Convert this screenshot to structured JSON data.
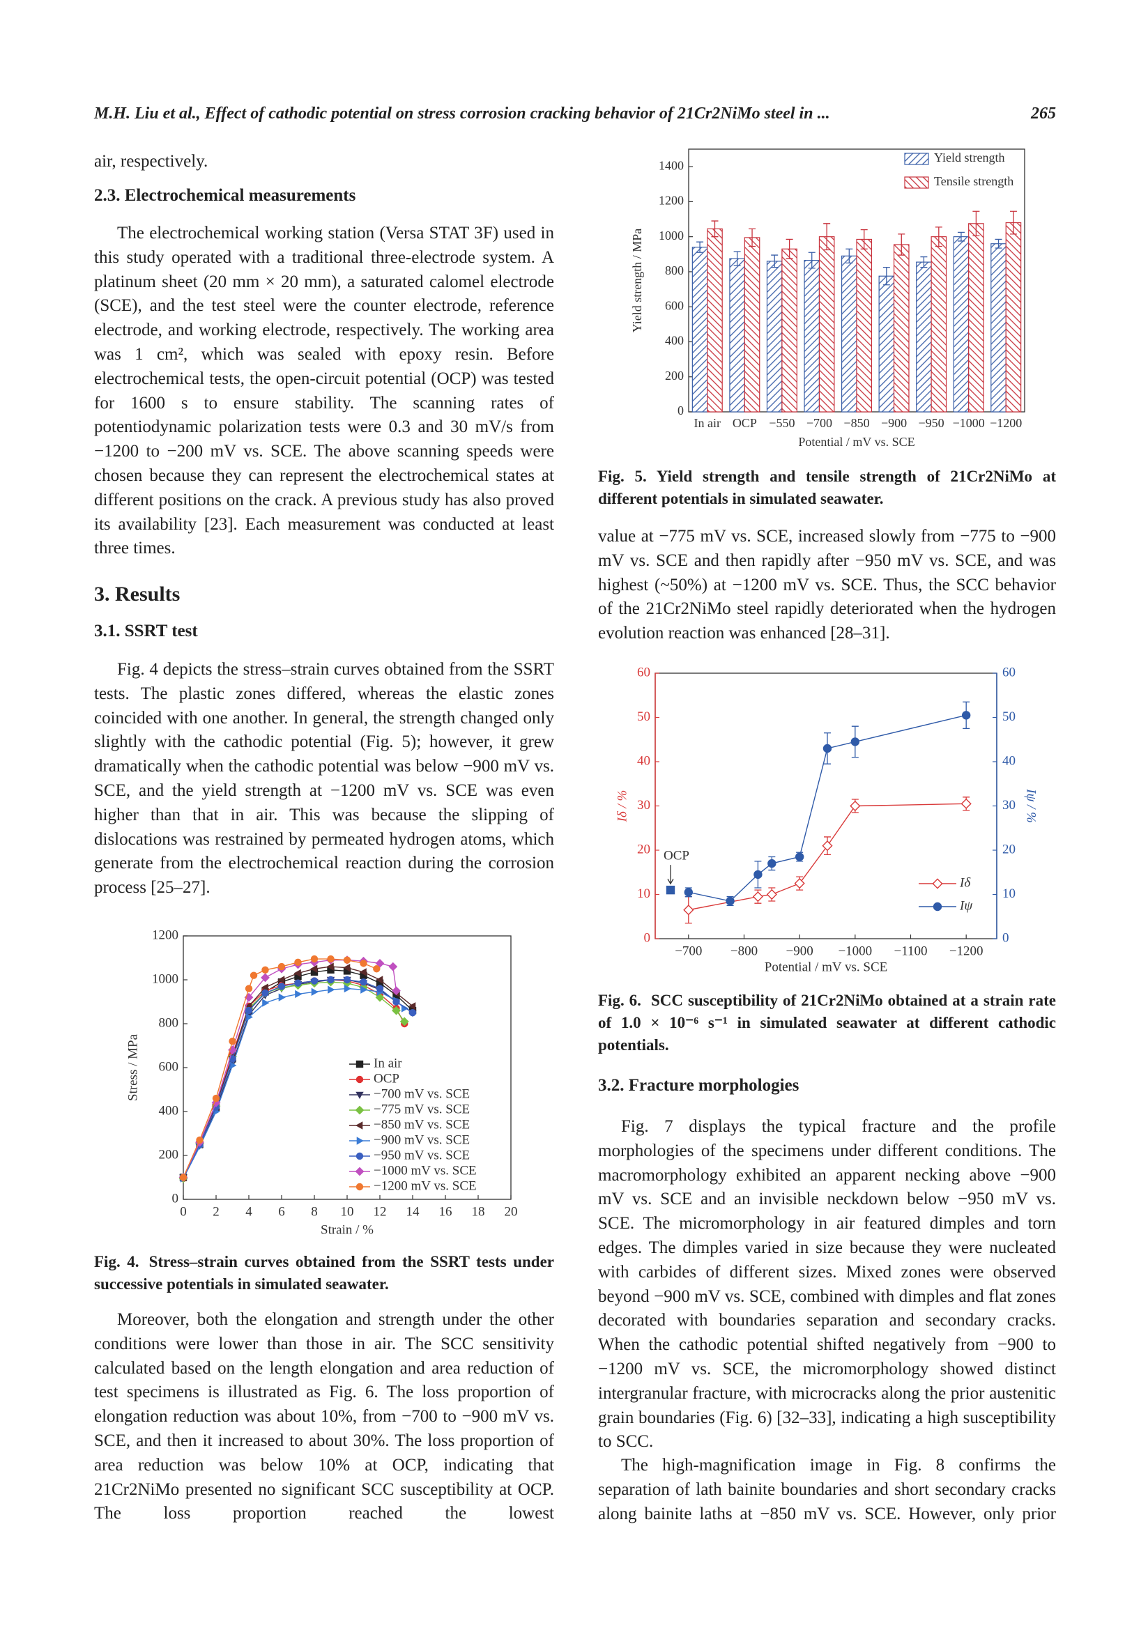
{
  "header": {
    "title": "M.H. Liu et al., Effect of cathodic potential on stress corrosion cracking behavior of 21Cr2NiMo steel in ...",
    "page": "265"
  },
  "text": {
    "p0": "air, respectively.",
    "h23": "2.3. Electrochemical measurements",
    "p1": "The electrochemical working station (Versa STAT 3F) used in this study operated with a traditional three-electrode system. A platinum sheet (20 mm × 20 mm), a saturated calomel electrode (SCE), and the test steel were the counter electrode, reference electrode, and working electrode, respectively. The working area was 1 cm², which was sealed with epoxy resin. Before electrochemical tests, the open-circuit potential (OCP) was tested for 1600 s to ensure stability. The scanning rates of potentiodynamic polarization tests were 0.3 and 30 mV/s from −1200 to −200 mV vs. SCE. The above scanning speeds were chosen because they can represent the electrochemical states at different positions on the crack. A previous study has also proved its availability [23]. Each measurement was conducted at least three times.",
    "h3": "3. Results",
    "h31": "3.1. SSRT test",
    "p2": "Fig. 4 depicts the stress–strain curves obtained from the SSRT tests. The plastic zones differed, whereas the elastic zones coincided with one another. In general, the strength changed only slightly with the cathodic potential (Fig. 5); however, it grew dramatically when the cathodic potential was below −900 mV vs. SCE, and the yield strength at −1200 mV vs. SCE was even higher than that in air. This was because the slipping of dislocations was restrained by permeated hydrogen atoms, which generate from the electrochemical reaction during the corrosion process [25–27].",
    "p3": "Moreover, both the elongation and strength under the other conditions were lower than those in air. The SCC sensitivity calculated based on the length elongation and area reduction of test specimens is illustrated as Fig. 6. The loss proportion of elongation reduction was about 10%, from −700 to −900 mV vs. SCE, and then it increased to about 30%. The loss proportion of area reduction was below 10% at OCP, indicating that 21Cr2NiMo presented no significant SCC susceptibility at OCP. The loss proportion reached the lowest",
    "p4": "value at −775 mV vs. SCE, increased slowly from −775 to −900 mV vs. SCE and then rapidly after −950 mV vs. SCE, and was highest (~50%) at −1200 mV vs. SCE. Thus, the SCC behavior of the 21Cr2NiMo steel rapidly deteriorated when the hydrogen evolution reaction was enhanced [28–31].",
    "h32": "3.2. Fracture morphologies",
    "p5": "Fig. 7 displays the typical fracture and the profile morphologies of the specimens under different conditions. The macromorphology exhibited an apparent necking above −900 mV vs. SCE and an invisible neckdown below −950 mV vs. SCE. The micromorphology in air featured dimples and torn edges. The dimples varied in size because they were nucleated with carbides of different sizes. Mixed zones were observed beyond −900 mV vs. SCE, combined with dimples and flat zones decorated with boundaries separation and secondary cracks. When the cathodic potential shifted negatively from −900 to −1200 mV vs. SCE, the micromorphology showed distinct intergranular fracture, with microcracks along the prior austenitic grain boundaries (Fig. 6) [32–33], indicating a high susceptibility to SCC.",
    "p6": "The high-magnification image in Fig. 8 confirms the separation of lath bainite boundaries and short secondary cracks along bainite laths at −850 mV vs. SCE. However, only prior"
  },
  "captions": {
    "fig4": {
      "label": "Fig. 4.",
      "text": "Stress–strain curves obtained from the SSRT tests under successive potentials in simulated seawater."
    },
    "fig5": {
      "label": "Fig. 5.",
      "text": "Yield strength and tensile strength of 21Cr2NiMo at different potentials in simulated seawater."
    },
    "fig6": {
      "label": "Fig. 6.",
      "text": "SCC susceptibility of 21Cr2NiMo obtained at a strain rate of 1.0 × 10⁻⁶ s⁻¹ in simulated seawater at different cathodic potentials."
    }
  },
  "chart_data": [
    {
      "type": "line",
      "xlabel": "Strain / %",
      "ylabel": "Stress / MPa",
      "xlim": [
        0,
        20
      ],
      "xticks": [
        0,
        2,
        4,
        6,
        8,
        10,
        12,
        14,
        16,
        18,
        20
      ],
      "ylim": [
        0,
        1200
      ],
      "yticks": [
        0,
        200,
        400,
        600,
        800,
        1000,
        1200
      ],
      "legend": "lower right",
      "series": [
        {
          "name": "In air",
          "color": "#222222",
          "marker": "square",
          "x": [
            0,
            1,
            2,
            3,
            4,
            5,
            6,
            7,
            8,
            9,
            10,
            11,
            12,
            13,
            14
          ],
          "values": [
            100,
            250,
            420,
            640,
            860,
            945,
            990,
            1015,
            1035,
            1045,
            1040,
            1020,
            985,
            930,
            860
          ]
        },
        {
          "name": "OCP",
          "color": "#e03030",
          "marker": "circle",
          "x": [
            0,
            1,
            2,
            3,
            4,
            5,
            6,
            7,
            8,
            9,
            10,
            11,
            12,
            13,
            13.5
          ],
          "values": [
            95,
            260,
            430,
            660,
            880,
            950,
            975,
            985,
            995,
            1000,
            995,
            975,
            935,
            870,
            800
          ]
        },
        {
          "name": "−700 mV vs. SCE",
          "color": "#33335f",
          "marker": "triangle-down",
          "x": [
            0,
            1,
            2,
            3,
            4,
            5,
            6,
            7,
            8,
            9,
            10,
            11,
            12,
            13,
            14
          ],
          "values": [
            100,
            245,
            410,
            620,
            840,
            930,
            960,
            980,
            990,
            1000,
            1000,
            985,
            955,
            900,
            850
          ]
        },
        {
          "name": "−775 mV vs. SCE",
          "color": "#7ac142",
          "marker": "diamond",
          "x": [
            0,
            1,
            2,
            3,
            4,
            5,
            6,
            7,
            8,
            9,
            10,
            11,
            12,
            13,
            13.5
          ],
          "values": [
            95,
            255,
            425,
            650,
            870,
            940,
            965,
            975,
            985,
            990,
            985,
            965,
            920,
            860,
            810
          ]
        },
        {
          "name": "−850 mV vs. SCE",
          "color": "#5a2a2a",
          "marker": "triangle-left",
          "x": [
            0,
            1,
            2,
            3,
            4,
            5,
            6,
            7,
            8,
            9,
            10,
            11,
            12,
            13,
            14
          ],
          "values": [
            100,
            250,
            430,
            650,
            880,
            965,
            1000,
            1030,
            1050,
            1060,
            1055,
            1035,
            1000,
            940,
            880
          ]
        },
        {
          "name": "−900 mV vs. SCE",
          "color": "#3a7bd5",
          "marker": "triangle-right",
          "x": [
            0,
            1,
            2,
            3,
            4,
            5,
            6,
            7,
            8,
            9,
            10,
            11,
            12,
            13,
            13.5
          ],
          "values": [
            95,
            240,
            400,
            610,
            830,
            895,
            920,
            935,
            945,
            955,
            960,
            955,
            945,
            905,
            870
          ]
        },
        {
          "name": "−950 mV vs. SCE",
          "color": "#3a5fc0",
          "marker": "circle",
          "x": [
            0,
            1,
            2,
            3,
            4,
            5,
            6,
            7,
            8,
            9,
            10,
            11,
            12,
            13,
            14
          ],
          "values": [
            100,
            250,
            420,
            640,
            860,
            940,
            970,
            985,
            995,
            1000,
            1000,
            990,
            960,
            900,
            850
          ]
        },
        {
          "name": "−1000 mV vs. SCE",
          "color": "#c050c0",
          "marker": "diamond",
          "x": [
            0,
            1,
            2,
            3,
            4,
            5,
            6,
            7,
            8,
            9,
            10,
            11,
            12,
            12.8,
            13
          ],
          "values": [
            100,
            260,
            440,
            680,
            920,
            1010,
            1050,
            1070,
            1080,
            1090,
            1090,
            1085,
            1075,
            1060,
            950
          ]
        },
        {
          "name": "−1200 mV vs. SCE",
          "color": "#f07830",
          "marker": "circle",
          "x": [
            0,
            1,
            2,
            3,
            4,
            4.3,
            5,
            6,
            7,
            8,
            9,
            10,
            11,
            11.8
          ],
          "values": [
            100,
            270,
            460,
            720,
            960,
            1020,
            1045,
            1060,
            1080,
            1095,
            1095,
            1090,
            1075,
            1050
          ]
        }
      ]
    },
    {
      "type": "bar",
      "xlabel": "Potential / mV vs. SCE",
      "ylabel": "Yield strength / MPa",
      "categories": [
        "In air",
        "OCP",
        "−550",
        "−700",
        "−850",
        "−900",
        "−950",
        "−1000",
        "−1200"
      ],
      "ylim": [
        0,
        1500
      ],
      "yticks": [
        0,
        200,
        400,
        600,
        800,
        1000,
        1200,
        1400
      ],
      "legend": "upper right",
      "series": [
        {
          "name": "Yield strength",
          "color": "#3a5fa8",
          "values": [
            940,
            875,
            860,
            865,
            890,
            775,
            855,
            1000,
            960
          ],
          "errors": [
            30,
            40,
            35,
            45,
            40,
            50,
            30,
            25,
            25
          ]
        },
        {
          "name": "Tensile strength",
          "color": "#c8323c",
          "values": [
            1045,
            995,
            930,
            1000,
            985,
            955,
            1000,
            1075,
            1080
          ],
          "errors": [
            45,
            50,
            55,
            75,
            55,
            60,
            55,
            70,
            65
          ]
        }
      ]
    },
    {
      "type": "line",
      "xlabel": "Potential / mV vs. SCE",
      "ylabel": "Iδ / %",
      "y2label": "Iψ / %",
      "axis_colors": true,
      "legend": "lower right",
      "annotation": "OCP",
      "ocp_value": 11,
      "xlim": [
        -640,
        -1255
      ],
      "xticks": [
        {
          "value": -700,
          "label": "−700"
        },
        {
          "value": -800,
          "label": "−800"
        },
        {
          "value": -900,
          "label": "−900"
        },
        {
          "value": -1000,
          "label": "−1000"
        },
        {
          "value": -1100,
          "label": "−1100"
        },
        {
          "value": -1200,
          "label": "−1200"
        }
      ],
      "ylim": [
        0,
        60
      ],
      "yticks": [
        0,
        10,
        20,
        30,
        40,
        50,
        60
      ],
      "y2lim": [
        0,
        60
      ],
      "y2ticks": [
        0,
        10,
        20,
        30,
        40,
        50,
        60
      ],
      "series": [
        {
          "name": "Iδ",
          "color": "#d93a3a",
          "marker": "diamond",
          "hollow": true,
          "x": [
            -700,
            -825,
            -850,
            -900,
            -950,
            -1000,
            -1200
          ],
          "values": [
            6.5,
            9.5,
            10,
            12.5,
            21,
            30,
            30.5
          ],
          "errors": [
            3,
            1.5,
            1.5,
            1.5,
            2,
            1.5,
            1.5
          ]
        },
        {
          "name": "Iψ",
          "color": "#2f5aa8",
          "marker": "circle",
          "axis": "y2",
          "x": [
            -700,
            -775,
            -825,
            -850,
            -900,
            -950,
            -1000,
            -1200
          ],
          "values": [
            10.5,
            8.5,
            14.5,
            17,
            18.5,
            43,
            44.5,
            50.5
          ],
          "errors": [
            1,
            1,
            3,
            1.5,
            1,
            3.5,
            3.5,
            3
          ]
        }
      ]
    }
  ]
}
